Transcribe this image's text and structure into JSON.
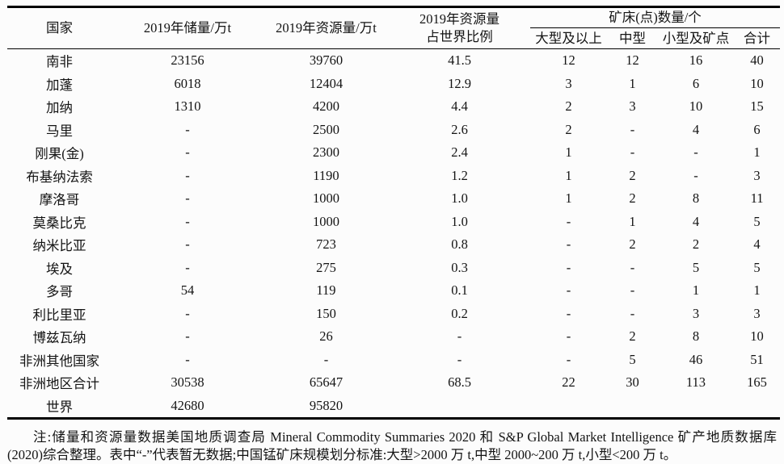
{
  "table": {
    "header": {
      "country": "国家",
      "reserves_2019": "2019年储量/万t",
      "resources_2019": "2019年资源量/万t",
      "world_share_line1": "2019年资源量",
      "world_share_line2": "占世界比例",
      "deposits_group": "矿床(点)数量/个",
      "sub_large": "大型及以上",
      "sub_medium": "中型",
      "sub_small": "小型及矿点",
      "sub_total": "合计"
    },
    "rows": [
      [
        "南非",
        "23156",
        "39760",
        "41.5",
        "12",
        "12",
        "16",
        "40"
      ],
      [
        "加蓬",
        "6018",
        "12404",
        "12.9",
        "3",
        "1",
        "6",
        "10"
      ],
      [
        "加纳",
        "1310",
        "4200",
        "4.4",
        "2",
        "3",
        "10",
        "15"
      ],
      [
        "马里",
        "-",
        "2500",
        "2.6",
        "2",
        "-",
        "4",
        "6"
      ],
      [
        "刚果(金)",
        "-",
        "2300",
        "2.4",
        "1",
        "-",
        "-",
        "1"
      ],
      [
        "布基纳法索",
        "-",
        "1190",
        "1.2",
        "1",
        "2",
        "-",
        "3"
      ],
      [
        "摩洛哥",
        "-",
        "1000",
        "1.0",
        "1",
        "2",
        "8",
        "11"
      ],
      [
        "莫桑比克",
        "-",
        "1000",
        "1.0",
        "-",
        "1",
        "4",
        "5"
      ],
      [
        "纳米比亚",
        "-",
        "723",
        "0.8",
        "-",
        "2",
        "2",
        "4"
      ],
      [
        "埃及",
        "-",
        "275",
        "0.3",
        "-",
        "-",
        "5",
        "5"
      ],
      [
        "多哥",
        "54",
        "119",
        "0.1",
        "-",
        "-",
        "1",
        "1"
      ],
      [
        "利比里亚",
        "-",
        "150",
        "0.2",
        "-",
        "-",
        "3",
        "3"
      ],
      [
        "博兹瓦纳",
        "-",
        "26",
        "-",
        "-",
        "2",
        "8",
        "10"
      ],
      [
        "非洲其他国家",
        "-",
        "-",
        "-",
        "-",
        "5",
        "46",
        "51"
      ],
      [
        "非洲地区合计",
        "30538",
        "65647",
        "68.5",
        "22",
        "30",
        "113",
        "165"
      ],
      [
        "世界",
        "42680",
        "95820",
        "",
        "",
        "",
        "",
        ""
      ]
    ]
  },
  "note": {
    "line1": "注:储量和资源量数据美国地质调查局 Mineral Commodity Summaries 2020 和 S&P Global Market Intelligence 矿产地质数据库",
    "line2": "(2020)综合整理。表中“-”代表暂无数据;中国锰矿床规模划分标准:大型>2000 万 t,中型 2000~200 万 t,小型<200 万 t。"
  },
  "colors": {
    "background": "#fcfcfc",
    "text": "#141414",
    "rule": "#000000"
  }
}
